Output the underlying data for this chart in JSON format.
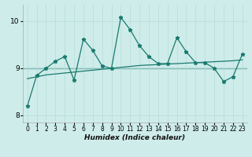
{
  "xlabel": "Humidex (Indice chaleur)",
  "background_color": "#ceecea",
  "grid_color": "#b8dbd9",
  "line_color": "#1a7a6e",
  "xlim": [
    -0.5,
    23.5
  ],
  "ylim": [
    7.85,
    10.35
  ],
  "x_ticks": [
    0,
    1,
    2,
    3,
    4,
    5,
    6,
    7,
    8,
    9,
    10,
    11,
    12,
    13,
    14,
    15,
    16,
    17,
    18,
    19,
    20,
    21,
    22,
    23
  ],
  "y_ticks": [
    8,
    9,
    10
  ],
  "jagged_y": [
    8.2,
    8.85,
    9.0,
    9.15,
    9.25,
    8.75,
    9.62,
    9.38,
    9.05,
    9.0,
    10.08,
    9.82,
    9.48,
    9.25,
    9.1,
    9.1,
    9.65,
    9.35,
    9.12,
    9.12,
    9.0,
    8.72,
    8.82,
    9.3
  ],
  "smooth_y": [
    8.78,
    8.82,
    8.86,
    8.88,
    8.9,
    8.92,
    8.94,
    8.96,
    8.98,
    9.0,
    9.02,
    9.04,
    9.06,
    9.07,
    9.08,
    9.09,
    9.1,
    9.11,
    9.12,
    9.13,
    9.14,
    9.15,
    9.16,
    9.18
  ],
  "hline_y": 9.0,
  "marker": "*",
  "markersize": 3.5,
  "linewidth": 0.9
}
